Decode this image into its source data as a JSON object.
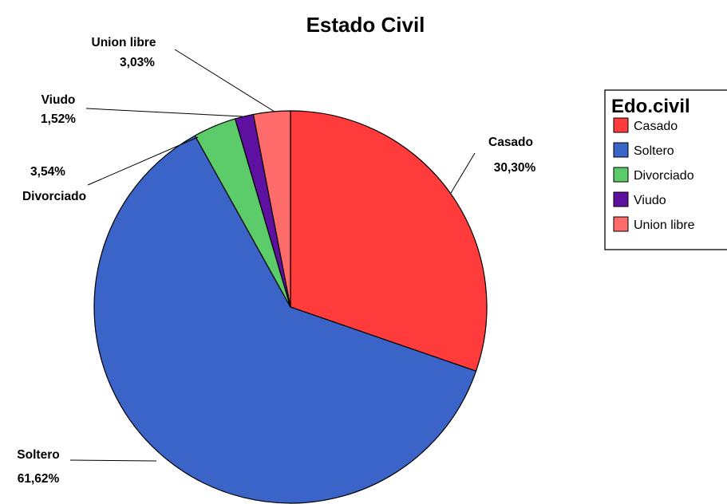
{
  "chart_data": {
    "type": "pie",
    "title": "Estado Civil",
    "legend_title": "Edo.civil",
    "legend_placement": "right",
    "slices": [
      {
        "name": "Casado",
        "value": 30.3,
        "label": "30,30%",
        "color": "#FF3B3B"
      },
      {
        "name": "Soltero",
        "value": 61.62,
        "label": "61,62%",
        "color": "#3A64C8"
      },
      {
        "name": "Divorciado",
        "value": 3.54,
        "label": "3,54%",
        "color": "#5CCB6A"
      },
      {
        "name": "Viudo",
        "value": 1.52,
        "label": "1,52%",
        "color": "#5E10A0"
      },
      {
        "name": "Union libre",
        "value": 3.03,
        "label": "3,03%",
        "color": "#FF6B6B"
      }
    ]
  }
}
